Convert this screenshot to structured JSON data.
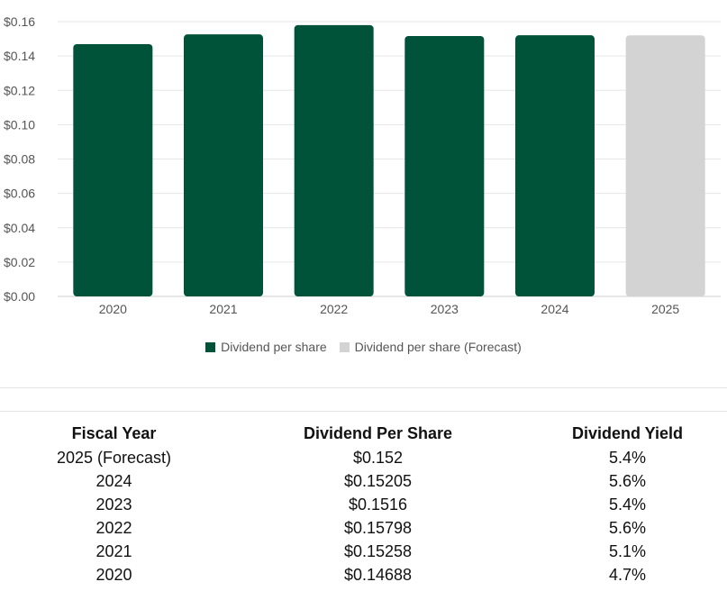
{
  "chart_data": {
    "type": "bar",
    "categories": [
      "2020",
      "2021",
      "2022",
      "2023",
      "2024",
      "2025"
    ],
    "series": [
      {
        "name": "Dividend per share",
        "values": [
          0.14688,
          0.15258,
          0.15798,
          0.1516,
          0.15205,
          null
        ],
        "color": "#005239"
      },
      {
        "name": "Dividend per share (Forecast)",
        "values": [
          null,
          null,
          null,
          null,
          null,
          0.152
        ],
        "color": "#d3d3d3"
      }
    ],
    "yticks": [
      "$0.00",
      "$0.02",
      "$0.04",
      "$0.06",
      "$0.08",
      "$0.10",
      "$0.12",
      "$0.14",
      "$0.16"
    ],
    "ylim": [
      0,
      0.16
    ],
    "grid": true,
    "legend_position": "bottom-center"
  },
  "legend": {
    "items": [
      {
        "label": "Dividend per share",
        "color": "#005239"
      },
      {
        "label": "Dividend per share (Forecast)",
        "color": "#d3d3d3"
      }
    ]
  },
  "table": {
    "headers": [
      "Fiscal Year",
      "Dividend Per Share",
      "Dividend Yield"
    ],
    "rows": [
      [
        "2025 (Forecast)",
        "$0.152",
        "5.4%"
      ],
      [
        "2024",
        "$0.15205",
        "5.6%"
      ],
      [
        "2023",
        "$0.1516",
        "5.4%"
      ],
      [
        "2022",
        "$0.15798",
        "5.6%"
      ],
      [
        "2021",
        "$0.15258",
        "5.1%"
      ],
      [
        "2020",
        "$0.14688",
        "4.7%"
      ]
    ]
  }
}
